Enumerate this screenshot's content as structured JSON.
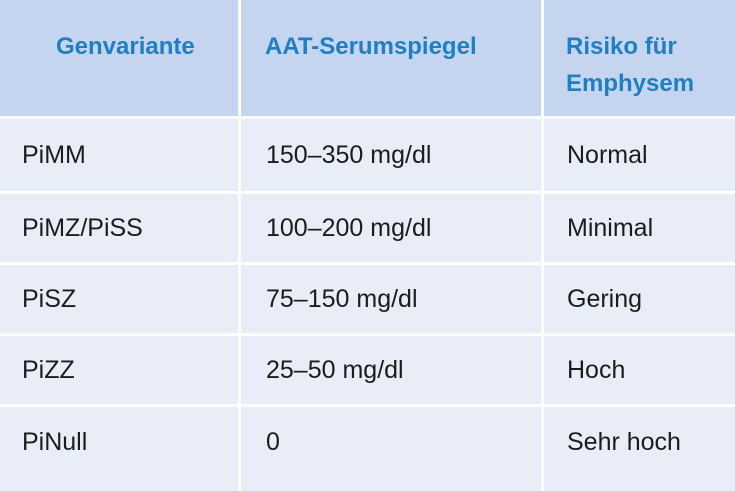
{
  "table": {
    "headers": [
      "Genvariante",
      "AAT-Serumspiegel",
      "Risiko für Emphysem"
    ],
    "rows": [
      [
        "PiMM",
        "150–350 mg/dl",
        "Normal"
      ],
      [
        "PiMZ/PiSS",
        "100–200 mg/dl",
        "Minimal"
      ],
      [
        "PiSZ",
        "75–150 mg/dl",
        "Gering"
      ],
      [
        "PiZZ",
        "25–50 mg/dl",
        "Hoch"
      ],
      [
        "PiNull",
        "0",
        "Sehr hoch"
      ]
    ]
  },
  "colors": {
    "header_bg": "#c5d5ef",
    "header_text": "#1f7fc4",
    "row_bg": "#e9edf8",
    "body_text": "#1c1c1c"
  }
}
